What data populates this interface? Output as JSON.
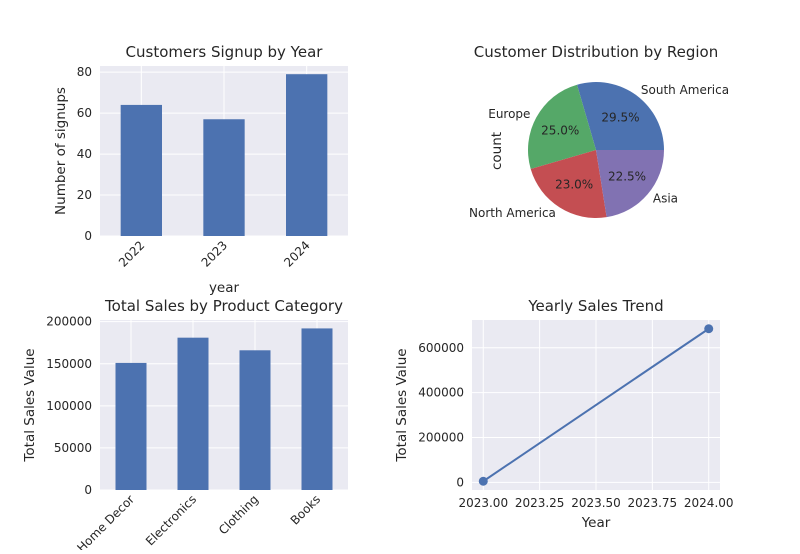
{
  "chart_data": [
    {
      "type": "bar",
      "title": "Customers Signup by Year",
      "xlabel": "year",
      "ylabel": "Number of signups",
      "categories": [
        "2022",
        "2023",
        "2024"
      ],
      "values": [
        64,
        57,
        79
      ],
      "ylim": [
        0,
        83
      ],
      "yticks": [
        0,
        20,
        40,
        60,
        80
      ],
      "color": "#4c72b0",
      "grid": true
    },
    {
      "type": "pie",
      "title": "Customer Distribution by Region",
      "ylabel": "count",
      "slices": [
        {
          "label": "South America",
          "value": 29.5,
          "pct": "29.5%",
          "color": "#4c72b0"
        },
        {
          "label": "Europe",
          "value": 25.0,
          "pct": "25.0%",
          "color": "#55a868"
        },
        {
          "label": "North America",
          "value": 23.0,
          "pct": "23.0%",
          "color": "#c44e52"
        },
        {
          "label": "Asia",
          "value": 22.5,
          "pct": "22.5%",
          "color": "#8172b2"
        }
      ]
    },
    {
      "type": "bar",
      "title": "Total Sales by Product Category",
      "xlabel": "",
      "ylabel": "Total Sales Value",
      "categories": [
        "Home Decor",
        "Electronics",
        "Clothing",
        "Books"
      ],
      "values": [
        151000,
        181000,
        166000,
        192000
      ],
      "ylim": [
        0,
        202000
      ],
      "yticks": [
        0,
        50000,
        100000,
        150000,
        200000
      ],
      "color": "#4c72b0",
      "grid": true
    },
    {
      "type": "line",
      "title": "Yearly Sales Trend",
      "xlabel": "Year",
      "ylabel": "Total Sales Value",
      "x": [
        2023,
        2024
      ],
      "y": [
        5000,
        685000
      ],
      "xlim": [
        2022.95,
        2024.05
      ],
      "ylim": [
        -34000,
        724000
      ],
      "xticks": [
        "2023.00",
        "2023.25",
        "2023.50",
        "2023.75",
        "2024.00"
      ],
      "yticks": [
        0,
        200000,
        400000,
        600000
      ],
      "color": "#4c72b0",
      "marker": "circle",
      "grid": true
    }
  ]
}
